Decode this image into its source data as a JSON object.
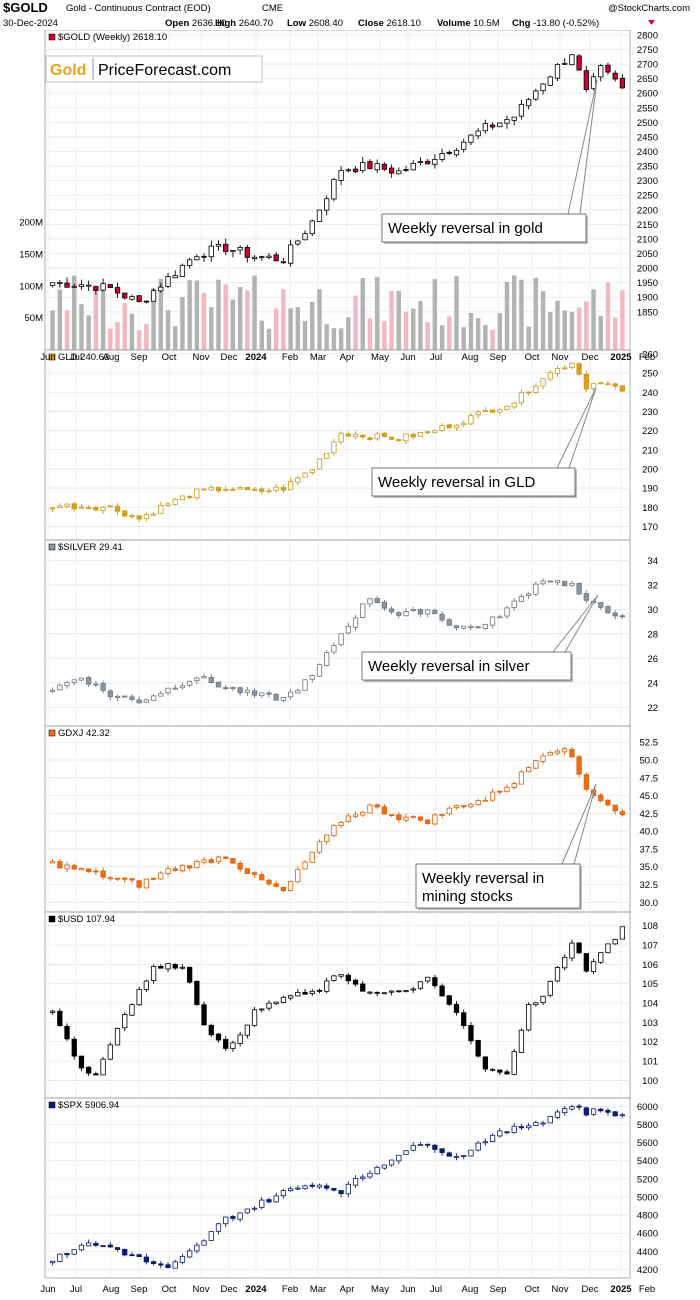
{
  "header": {
    "symbol": "$GOLD",
    "desc": "Gold - Continuous Contract (EOD)",
    "exchange": "CME",
    "watermark": "@StockCharts.com",
    "date": "30-Dec-2024",
    "ohlc": [
      {
        "label": "Open",
        "value": "2636.10"
      },
      {
        "label": "High",
        "value": "2640.70"
      },
      {
        "label": "Low",
        "value": "2608.40"
      },
      {
        "label": "Close",
        "value": "2618.10"
      },
      {
        "label": "Volume",
        "value": "10.5M"
      },
      {
        "label": "Chg",
        "value": "-13.80 (-0.52%)"
      }
    ]
  },
  "logo": {
    "gold_word": "Gold",
    "rest": "PriceForecast.com"
  },
  "x_labels": [
    "Jun",
    "Jul",
    "Aug",
    "Sep",
    "Oct",
    "Nov",
    "Dec",
    "2024",
    "Feb",
    "Mar",
    "Apr",
    "May",
    "Jun",
    "Jul",
    "Aug",
    "Sep",
    "Oct",
    "Nov",
    "Dec",
    "2025",
    "Feb"
  ],
  "panels": [
    {
      "legend": "$GOLD (Weekly) 2618.10",
      "color_up": "#ffffff",
      "color_down": "#cc0033",
      "outline": "#000000",
      "style": "candle",
      "annotation": "Weekly reversal in gold",
      "volume_labels": [
        "200M",
        "150M",
        "100M",
        "50M"
      ]
    },
    {
      "legend": "GLD 240.63",
      "color_up": "#ffffff",
      "color_down": "#d9a21c",
      "outline": "#c99a1e",
      "style": "candle",
      "annotation": "Weekly reversal in GLD"
    },
    {
      "legend": "$SILVER 29.41",
      "color_up": "#ffffff",
      "color_down": "#8c96a0",
      "outline": "#6e7680",
      "style": "candle",
      "annotation": "Weekly reversal in silver"
    },
    {
      "legend": "GDXJ 42.32",
      "color_up": "#ffffff",
      "color_down": "#ee6e11",
      "outline": "#d9600a",
      "style": "candle",
      "annotation": "Weekly reversal in\nmining stocks"
    },
    {
      "legend": "$USD 107.94",
      "color_up": "#ffffff",
      "color_down": "#000000",
      "outline": "#000000",
      "style": "candle",
      "annotation": ""
    },
    {
      "legend": "$SPX 5906.94",
      "color_up": "#ffffff",
      "color_down": "#0a1f6e",
      "outline": "#0a1f6e",
      "style": "candle",
      "annotation": ""
    }
  ],
  "chart_data": [
    {
      "type": "candlestick",
      "title": "$GOLD (Weekly) 2618.10",
      "y_ticks": [
        1850,
        1900,
        1950,
        2000,
        2050,
        2100,
        2150,
        2200,
        2250,
        2300,
        2350,
        2400,
        2450,
        2500,
        2550,
        2600,
        2650,
        2700,
        2750,
        2800
      ],
      "ylim": [
        1815,
        2810
      ],
      "anchors": [
        [
          0,
          1950
        ],
        [
          4,
          1945
        ],
        [
          8,
          1930
        ],
        [
          12,
          1880
        ],
        [
          16,
          1965
        ],
        [
          20,
          2050
        ],
        [
          24,
          2070
        ],
        [
          28,
          2040
        ],
        [
          32,
          2030
        ],
        [
          36,
          2160
        ],
        [
          40,
          2340
        ],
        [
          44,
          2350
        ],
        [
          48,
          2330
        ],
        [
          52,
          2370
        ],
        [
          56,
          2420
        ],
        [
          60,
          2480
        ],
        [
          64,
          2520
        ],
        [
          68,
          2640
        ],
        [
          72,
          2740
        ],
        [
          74,
          2600
        ],
        [
          76,
          2680
        ],
        [
          79,
          2620
        ]
      ],
      "last_close": 2618.1,
      "volume_ylim": [
        0,
        220
      ]
    },
    {
      "type": "candlestick",
      "title": "GLD 240.63",
      "y_ticks": [
        170,
        180,
        190,
        200,
        210,
        220,
        230,
        240,
        250,
        260
      ],
      "ylim": [
        165,
        261
      ],
      "anchors": [
        [
          0,
          181
        ],
        [
          8,
          180
        ],
        [
          12,
          174
        ],
        [
          16,
          182
        ],
        [
          20,
          188
        ],
        [
          24,
          190
        ],
        [
          28,
          188
        ],
        [
          32,
          190
        ],
        [
          36,
          200
        ],
        [
          40,
          219
        ],
        [
          44,
          217
        ],
        [
          48,
          216
        ],
        [
          52,
          219
        ],
        [
          56,
          224
        ],
        [
          60,
          230
        ],
        [
          64,
          235
        ],
        [
          68,
          248
        ],
        [
          72,
          256
        ],
        [
          74,
          243
        ],
        [
          76,
          246
        ],
        [
          79,
          240.6
        ]
      ],
      "last_close": 240.63
    },
    {
      "type": "candlestick",
      "title": "$SILVER 29.41",
      "y_ticks": [
        22,
        24,
        26,
        28,
        30,
        32,
        34
      ],
      "ylim": [
        20.8,
        35.5
      ],
      "anchors": [
        [
          0,
          23.5
        ],
        [
          4,
          24.5
        ],
        [
          8,
          23
        ],
        [
          12,
          22.5
        ],
        [
          16,
          23.5
        ],
        [
          20,
          24.5
        ],
        [
          24,
          23.6
        ],
        [
          28,
          23
        ],
        [
          32,
          22.7
        ],
        [
          36,
          24.5
        ],
        [
          40,
          28
        ],
        [
          44,
          31
        ],
        [
          48,
          29.5
        ],
        [
          52,
          30
        ],
        [
          56,
          28.5
        ],
        [
          60,
          28.7
        ],
        [
          64,
          30.5
        ],
        [
          68,
          32.5
        ],
        [
          72,
          32
        ],
        [
          74,
          30.5
        ],
        [
          76,
          30.2
        ],
        [
          79,
          29.4
        ]
      ],
      "last_close": 29.41
    },
    {
      "type": "candlestick",
      "title": "GDXJ 42.32",
      "y_ticks": [
        30.0,
        32.5,
        35.0,
        37.5,
        40.0,
        42.5,
        45.0,
        47.5,
        50.0,
        52.5
      ],
      "ylim": [
        29.2,
        54.5
      ],
      "anchors": [
        [
          0,
          35.5
        ],
        [
          4,
          34.5
        ],
        [
          8,
          33.5
        ],
        [
          12,
          32.5
        ],
        [
          16,
          34.5
        ],
        [
          20,
          35.5
        ],
        [
          24,
          36.5
        ],
        [
          28,
          33.5
        ],
        [
          32,
          31.5
        ],
        [
          36,
          37
        ],
        [
          40,
          41.5
        ],
        [
          44,
          43.5
        ],
        [
          48,
          42
        ],
        [
          52,
          41.5
        ],
        [
          56,
          43.5
        ],
        [
          60,
          44.5
        ],
        [
          64,
          47
        ],
        [
          68,
          51
        ],
        [
          71,
          52
        ],
        [
          74,
          46
        ],
        [
          76,
          44.5
        ],
        [
          79,
          42.3
        ]
      ],
      "last_close": 42.32
    },
    {
      "type": "candlestick",
      "title": "$USD 107.94",
      "y_ticks": [
        100,
        101,
        102,
        103,
        104,
        105,
        106,
        107,
        108
      ],
      "ylim": [
        99.3,
        108.6
      ],
      "anchors": [
        [
          0,
          103.7
        ],
        [
          4,
          100.6
        ],
        [
          6,
          100.3
        ],
        [
          10,
          103.5
        ],
        [
          14,
          105.8
        ],
        [
          18,
          106
        ],
        [
          21,
          103
        ],
        [
          24,
          101.5
        ],
        [
          28,
          103.5
        ],
        [
          32,
          104.3
        ],
        [
          36,
          104.5
        ],
        [
          40,
          105.5
        ],
        [
          44,
          104.5
        ],
        [
          48,
          104.5
        ],
        [
          52,
          105.2
        ],
        [
          56,
          103.5
        ],
        [
          60,
          100.5
        ],
        [
          63,
          100.5
        ],
        [
          66,
          103.8
        ],
        [
          68,
          104.3
        ],
        [
          72,
          107.2
        ],
        [
          74,
          105.8
        ],
        [
          76,
          106.5
        ],
        [
          79,
          107.9
        ]
      ],
      "last_close": 107.94
    },
    {
      "type": "candlestick",
      "title": "$SPX 5906.94",
      "y_ticks": [
        4200,
        4400,
        4600,
        4800,
        5000,
        5200,
        5400,
        5600,
        5800,
        6000
      ],
      "ylim": [
        4150,
        6070
      ],
      "anchors": [
        [
          0,
          4290
        ],
        [
          4,
          4480
        ],
        [
          8,
          4450
        ],
        [
          12,
          4320
        ],
        [
          16,
          4200
        ],
        [
          20,
          4450
        ],
        [
          24,
          4760
        ],
        [
          28,
          4900
        ],
        [
          32,
          5050
        ],
        [
          36,
          5150
        ],
        [
          40,
          5070
        ],
        [
          44,
          5280
        ],
        [
          48,
          5480
        ],
        [
          52,
          5600
        ],
        [
          56,
          5430
        ],
        [
          60,
          5640
        ],
        [
          64,
          5750
        ],
        [
          68,
          5850
        ],
        [
          72,
          6020
        ],
        [
          74,
          5930
        ],
        [
          76,
          5960
        ],
        [
          79,
          5907
        ]
      ],
      "last_close": 5906.94
    }
  ]
}
